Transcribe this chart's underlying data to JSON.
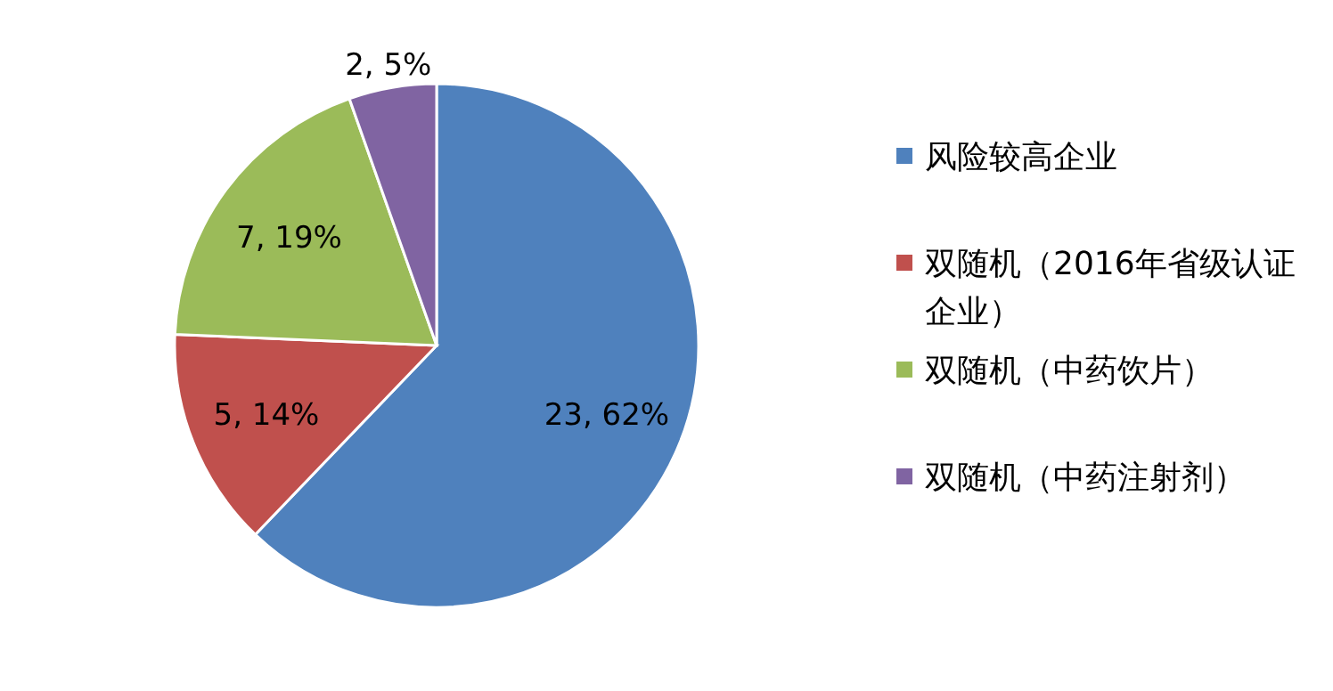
{
  "chart_data": {
    "type": "pie",
    "categories": [
      "风险较高企业",
      "双随机（2016年省级认证企业）",
      "双随机（中药饮片）",
      "双随机（中药注射剂）"
    ],
    "values": [
      23,
      5,
      7,
      2
    ],
    "colors": [
      "#4f81bd",
      "#c0504d",
      "#9bbb59",
      "#8064a2"
    ],
    "value_labels": [
      "23, 62%",
      "5, 14%",
      "7, 19%",
      "2, 5%"
    ],
    "legend": "right"
  }
}
